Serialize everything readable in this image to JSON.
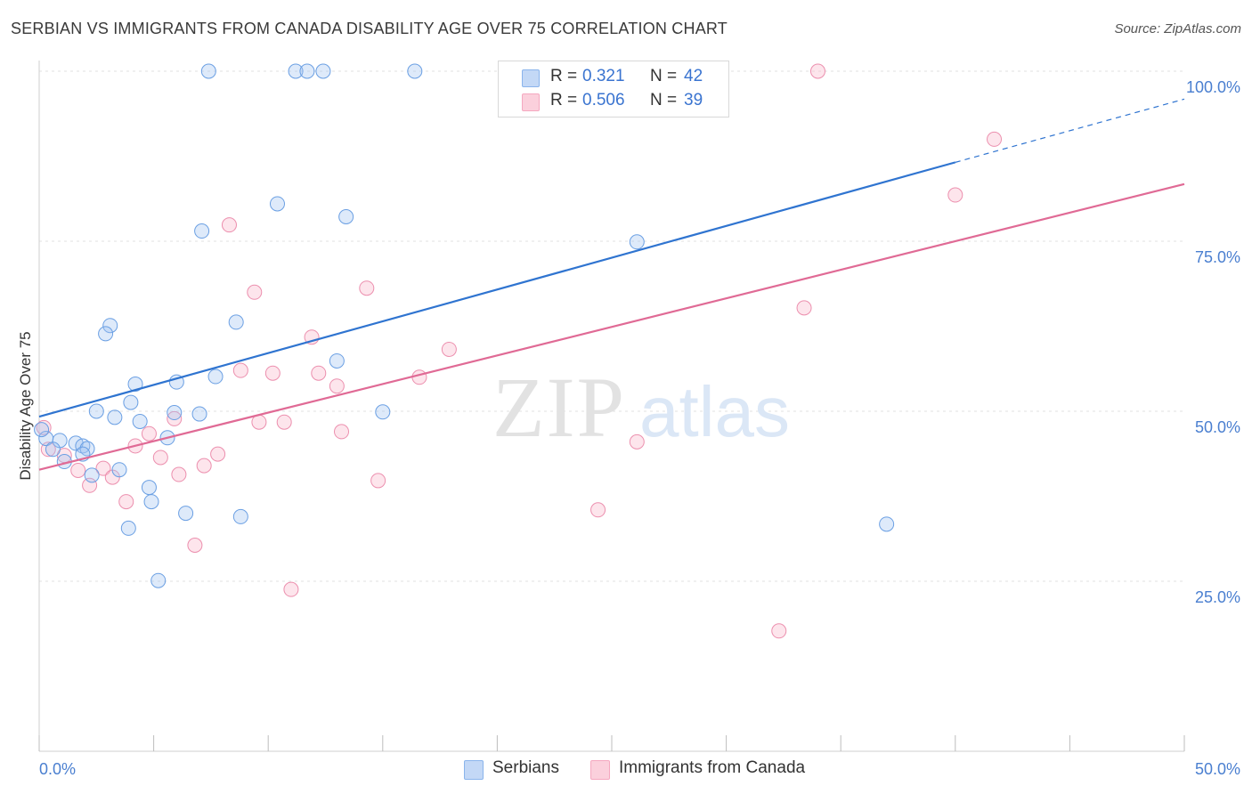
{
  "header": {
    "title": "SERBIAN VS IMMIGRANTS FROM CANADA DISABILITY AGE OVER 75 CORRELATION CHART",
    "source": "Source: ZipAtlas.com"
  },
  "watermark": {
    "zip": "ZIP",
    "atlas": "atlas"
  },
  "legend": {
    "rows": [
      {
        "r_label": "R =",
        "r_value": "0.321",
        "n_label": "N =",
        "n_value": "42",
        "color": "#8ab4ec"
      },
      {
        "r_label": "R =",
        "r_value": "0.506",
        "n_label": "N =",
        "n_value": "39",
        "color": "#f5a8c0"
      }
    ]
  },
  "bottom_legend": {
    "series1": "Serbians",
    "series2": "Immigrants from Canada"
  },
  "chart_data": {
    "type": "scatter",
    "title": "SERBIAN VS IMMIGRANTS FROM CANADA DISABILITY AGE OVER 75 CORRELATION CHART",
    "xlabel": "",
    "ylabel": "Disability Age Over 75",
    "xlim": [
      0,
      50
    ],
    "ylim": [
      0,
      102
    ],
    "x_tick_labels": [
      "0.0%",
      "50.0%"
    ],
    "y_ticks": [
      25,
      50,
      75,
      100
    ],
    "y_tick_labels": [
      "25.0%",
      "50.0%",
      "75.0%",
      "100.0%"
    ],
    "grid": true,
    "colors": {
      "serbians": "#6a9fe3",
      "canada": "#ec8fae",
      "serbians_line": "#2f74d0",
      "canada_line": "#e06a95"
    },
    "series": [
      {
        "name": "Serbians",
        "trend": {
          "x0": 0,
          "y0": 49.2,
          "x1": 40,
          "y1": 86.6,
          "dash_to_x": 50,
          "dash_to_y": 95.9
        },
        "points": [
          [
            7.4,
            100
          ],
          [
            11.2,
            100
          ],
          [
            11.7,
            100
          ],
          [
            12.4,
            100
          ],
          [
            16.4,
            100
          ],
          [
            10.4,
            80.5
          ],
          [
            13.4,
            78.6
          ],
          [
            7.1,
            76.5
          ],
          [
            26.1,
            74.9
          ],
          [
            3.1,
            62.6
          ],
          [
            2.9,
            61.4
          ],
          [
            8.6,
            63.1
          ],
          [
            13.0,
            57.4
          ],
          [
            4.2,
            54.0
          ],
          [
            6.0,
            54.3
          ],
          [
            7.7,
            55.1
          ],
          [
            4.0,
            51.3
          ],
          [
            2.5,
            50.0
          ],
          [
            3.3,
            49.1
          ],
          [
            5.9,
            49.8
          ],
          [
            7.0,
            49.6
          ],
          [
            4.4,
            48.5
          ],
          [
            15.0,
            49.9
          ],
          [
            5.6,
            46.1
          ],
          [
            0.3,
            46.0
          ],
          [
            0.9,
            45.7
          ],
          [
            1.6,
            45.3
          ],
          [
            1.9,
            44.9
          ],
          [
            2.1,
            44.5
          ],
          [
            0.6,
            44.4
          ],
          [
            1.9,
            43.7
          ],
          [
            1.1,
            42.6
          ],
          [
            2.3,
            40.6
          ],
          [
            3.5,
            41.4
          ],
          [
            4.8,
            38.8
          ],
          [
            4.9,
            36.7
          ],
          [
            6.4,
            35.0
          ],
          [
            8.8,
            34.5
          ],
          [
            3.9,
            32.8
          ],
          [
            37.0,
            33.4
          ],
          [
            5.2,
            25.1
          ],
          [
            0.1,
            47.3
          ]
        ]
      },
      {
        "name": "Immigrants from Canada",
        "trend": {
          "x0": 0,
          "y0": 41.4,
          "x1": 50,
          "y1": 83.4
        },
        "points": [
          [
            20.5,
            100
          ],
          [
            34.0,
            100
          ],
          [
            41.7,
            90.0
          ],
          [
            40.0,
            81.8
          ],
          [
            8.3,
            77.4
          ],
          [
            9.4,
            67.5
          ],
          [
            14.3,
            68.1
          ],
          [
            33.4,
            65.2
          ],
          [
            11.9,
            60.9
          ],
          [
            17.9,
            59.1
          ],
          [
            8.8,
            56.0
          ],
          [
            10.2,
            55.6
          ],
          [
            12.2,
            55.6
          ],
          [
            13.0,
            53.7
          ],
          [
            16.6,
            55.0
          ],
          [
            5.9,
            48.9
          ],
          [
            9.6,
            48.4
          ],
          [
            10.7,
            48.4
          ],
          [
            13.2,
            47.0
          ],
          [
            4.8,
            46.7
          ],
          [
            26.1,
            45.5
          ],
          [
            4.2,
            44.9
          ],
          [
            0.4,
            44.4
          ],
          [
            5.3,
            43.2
          ],
          [
            7.8,
            43.7
          ],
          [
            1.7,
            41.3
          ],
          [
            2.8,
            41.6
          ],
          [
            7.2,
            42.0
          ],
          [
            3.2,
            40.3
          ],
          [
            6.1,
            40.7
          ],
          [
            2.2,
            39.1
          ],
          [
            14.8,
            39.8
          ],
          [
            3.8,
            36.7
          ],
          [
            24.4,
            35.5
          ],
          [
            6.8,
            30.3
          ],
          [
            11.0,
            23.8
          ],
          [
            32.3,
            17.7
          ],
          [
            0.2,
            47.6
          ],
          [
            1.1,
            43.5
          ]
        ]
      }
    ]
  }
}
